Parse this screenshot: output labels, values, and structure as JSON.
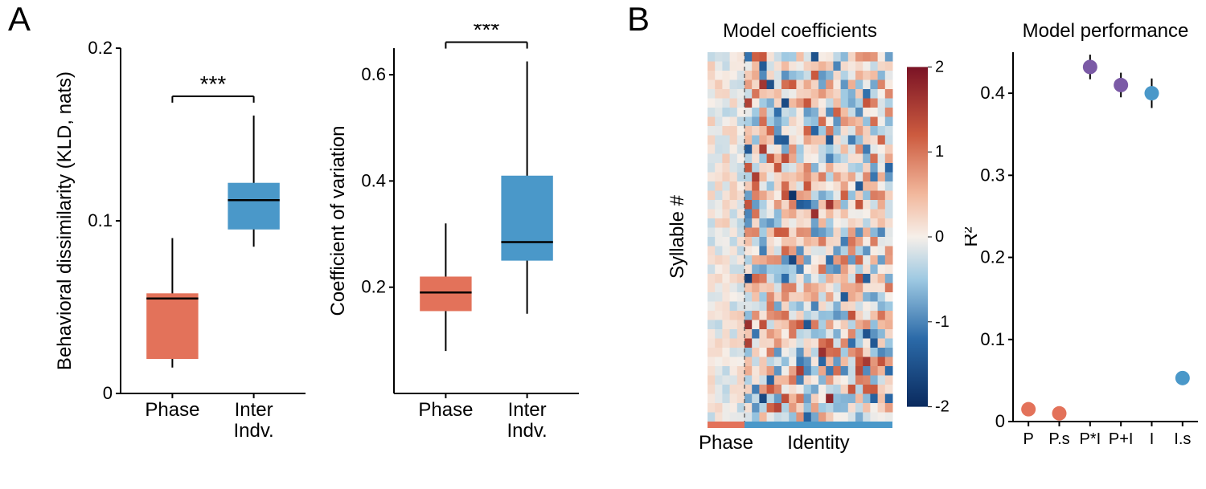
{
  "panelLabels": {
    "A": "A",
    "B": "B"
  },
  "colors": {
    "phase": "#e3725a",
    "inter": "#4a98c9",
    "purple": "#7b5aa6",
    "axis": "#000000",
    "sig": "#000000",
    "bg": "#ffffff"
  },
  "fontsizes": {
    "panelLabel": 42,
    "axisLabel": 24,
    "tick": 22,
    "sig": 28,
    "heatTitle": 24,
    "heatXLabel": 24,
    "cbarTick": 20
  },
  "boxKLD": {
    "ylabel": "Behavioral dissimilarity (KLD, nats)",
    "ylim": [
      0,
      0.2
    ],
    "yticks": [
      0,
      0.1,
      0.2
    ],
    "yticklabels": [
      "0",
      "0.1",
      "0.2"
    ],
    "xticklabels": [
      "Phase",
      "Inter\nIndv."
    ],
    "sig": "***",
    "data": {
      "phase": {
        "q1": 0.02,
        "median": 0.055,
        "q3": 0.058,
        "whiskLo": 0.015,
        "whiskHi": 0.09
      },
      "inter": {
        "q1": 0.095,
        "median": 0.112,
        "q3": 0.122,
        "whiskLo": 0.085,
        "whiskHi": 0.161
      }
    }
  },
  "boxCV": {
    "ylabel": "Coefficient of variation",
    "ylim": [
      0,
      0.65
    ],
    "yticks": [
      0.2,
      0.4,
      0.6
    ],
    "yticklabels": [
      "0.2",
      "0.4",
      "0.6"
    ],
    "xticklabels": [
      "Phase",
      "Inter\nIndv."
    ],
    "sig": "***",
    "data": {
      "phase": {
        "q1": 0.155,
        "median": 0.19,
        "q3": 0.22,
        "whiskLo": 0.08,
        "whiskHi": 0.32
      },
      "inter": {
        "q1": 0.25,
        "median": 0.285,
        "q3": 0.41,
        "whiskLo": 0.15,
        "whiskHi": 0.625
      }
    }
  },
  "heatmap": {
    "title": "Model coefficients",
    "ylabel": "Syllable #",
    "xsections": [
      {
        "label": "Phase",
        "color": "#e3725a",
        "span": [
          0,
          5
        ]
      },
      {
        "label": "Identity",
        "color": "#4a98c9",
        "span": [
          5,
          25
        ]
      }
    ],
    "rows": 40,
    "cols": 25,
    "dashedAt": 5,
    "vmin": -2,
    "vmax": 2,
    "cbar": {
      "ticks": [
        -2,
        -1,
        0,
        1,
        2
      ],
      "ticklabels": [
        "-2",
        "-1",
        "0",
        "1",
        "2"
      ]
    },
    "colormap": {
      "stops": [
        {
          "v": -2,
          "c": "#0a2a5e"
        },
        {
          "v": -1.2,
          "c": "#2b6aa8"
        },
        {
          "v": -0.5,
          "c": "#9ec9e2"
        },
        {
          "v": 0,
          "c": "#f6efe9"
        },
        {
          "v": 0.5,
          "c": "#f2b89d"
        },
        {
          "v": 1.2,
          "c": "#cc5b3f"
        },
        {
          "v": 2,
          "c": "#7a1325"
        }
      ]
    },
    "seed": 123456
  },
  "perf": {
    "title": "Model performance",
    "ylabel": "R²",
    "ylim": [
      0,
      0.45
    ],
    "yticks": [
      0,
      0.1,
      0.2,
      0.3,
      0.4
    ],
    "yticklabels": [
      "0",
      "0.1",
      "0.2",
      "0.3",
      "0.4"
    ],
    "xticklabels": [
      "P",
      "P.s",
      "P*I",
      "P+I",
      "I",
      "I.s"
    ],
    "points": [
      {
        "x": 0,
        "y": 0.015,
        "err": 0.004,
        "color": "#e3725a"
      },
      {
        "x": 1,
        "y": 0.01,
        "err": 0.004,
        "color": "#e3725a"
      },
      {
        "x": 2,
        "y": 0.432,
        "err": 0.015,
        "color": "#7b5aa6"
      },
      {
        "x": 3,
        "y": 0.41,
        "err": 0.015,
        "color": "#7b5aa6"
      },
      {
        "x": 4,
        "y": 0.4,
        "err": 0.018,
        "color": "#4a98c9"
      },
      {
        "x": 5,
        "y": 0.053,
        "err": 0.005,
        "color": "#4a98c9"
      }
    ],
    "markerRadius": 9
  }
}
